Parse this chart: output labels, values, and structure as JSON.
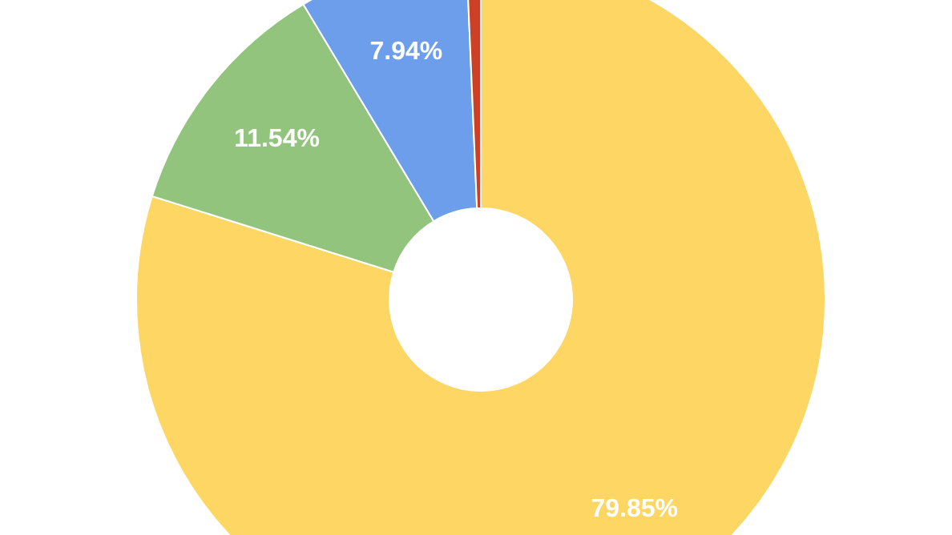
{
  "chart_data": {
    "type": "donut",
    "categories": [
      null,
      null,
      null,
      null
    ],
    "values": [
      79.85,
      11.54,
      7.94,
      0.67
    ],
    "colors": [
      "#fdd663",
      "#93c47d",
      "#6d9eeb",
      "#cc4125"
    ],
    "value_labels": [
      "79.85%",
      "11.54%",
      "7.94%",
      null
    ]
  }
}
